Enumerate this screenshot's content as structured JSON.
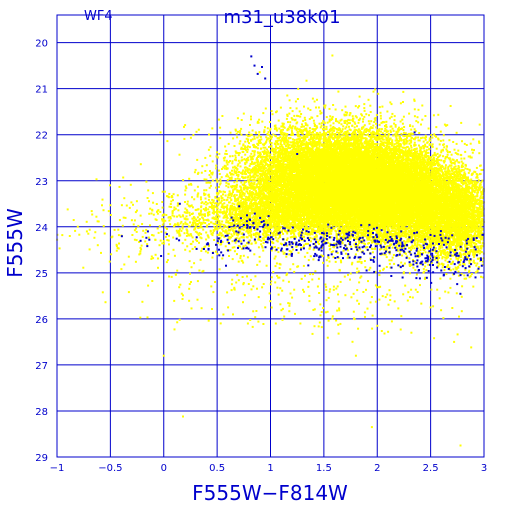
{
  "chart_data": {
    "type": "scatter",
    "title": "m31_u38k01",
    "panel_label": "WF4",
    "xlabel": "F555W−F814W",
    "ylabel": "F555W",
    "xlim": [
      -1,
      3
    ],
    "ylim": [
      29,
      19.4
    ],
    "y_inverted": true,
    "grid": true,
    "x_ticks": [
      -1,
      -0.5,
      0,
      0.5,
      1,
      1.5,
      2,
      2.5,
      3
    ],
    "x_tick_labels": [
      "−1",
      "−0.5",
      "0",
      "0.5",
      "1",
      "1.5",
      "2",
      "2.5",
      "3"
    ],
    "y_ticks": [
      20,
      21,
      22,
      23,
      24,
      25,
      26,
      27,
      28,
      29
    ],
    "y_tick_labels": [
      "20",
      "21",
      "22",
      "23",
      "24",
      "25",
      "26",
      "27",
      "28",
      "29"
    ],
    "colors": {
      "axes": "#0000cc",
      "background": "#ffffff",
      "yellow_points": "#ffff00",
      "blue_points": "#0000cc"
    },
    "series": [
      {
        "color": "#ffff00",
        "description_points": [
          {
            "x": 1.55,
            "y": 22.95,
            "sx": 0.42,
            "sy": 0.55,
            "n": 9000
          },
          {
            "x": 1.85,
            "y": 23.1,
            "sx": 0.38,
            "sy": 0.5,
            "n": 9000
          },
          {
            "x": 2.25,
            "y": 23.45,
            "sx": 0.35,
            "sy": 0.45,
            "n": 6000
          },
          {
            "x": 2.75,
            "y": 23.9,
            "sx": 0.22,
            "sy": 0.45,
            "n": 2600
          },
          {
            "x": 1.05,
            "y": 23.7,
            "sx": 0.3,
            "sy": 0.3,
            "n": 1400
          },
          {
            "x": 0.55,
            "y": 23.85,
            "sx": 0.35,
            "sy": 0.3,
            "n": 500
          },
          {
            "x": 0.0,
            "y": 24.0,
            "sx": 0.6,
            "sy": 0.5,
            "n": 250
          },
          {
            "x": 1.5,
            "y": 25.4,
            "sx": 0.8,
            "sy": 0.5,
            "n": 300
          }
        ],
        "points": [
          [
            1.58,
            20.28
          ],
          [
            0.73,
            21.68
          ],
          [
            0.19,
            21.83
          ],
          [
            -0.03,
            21.95
          ],
          [
            0.65,
            22.08
          ],
          [
            0.2,
            23.3
          ],
          [
            -0.37,
            23.38
          ],
          [
            -0.5,
            23.53
          ],
          [
            -0.62,
            23.88
          ],
          [
            -0.72,
            24.1
          ],
          [
            -0.88,
            24.2
          ],
          [
            -0.95,
            24.18
          ],
          [
            -0.42,
            24.18
          ],
          [
            -0.27,
            24.28
          ],
          [
            -0.22,
            24.58
          ],
          [
            -0.08,
            24.28
          ],
          [
            0.02,
            24.22
          ],
          [
            0.1,
            23.58
          ],
          [
            0.27,
            24.23
          ],
          [
            0.42,
            24.38
          ],
          [
            0.55,
            24.33
          ],
          [
            0.27,
            24.48
          ],
          [
            -0.1,
            24.68
          ],
          [
            -0.37,
            24.82
          ],
          [
            0.75,
            24.63
          ],
          [
            0.32,
            25.18
          ],
          [
            0.05,
            25.08
          ],
          [
            0.95,
            25.75
          ],
          [
            0.75,
            25.22
          ],
          [
            1.48,
            25.85
          ],
          [
            1.05,
            26.1
          ],
          [
            1.28,
            26.1
          ],
          [
            2.0,
            26.15
          ],
          [
            2.32,
            26.3
          ],
          [
            2.22,
            26.23
          ],
          [
            2.72,
            26.5
          ],
          [
            2.88,
            26.62
          ],
          [
            1.8,
            26.8
          ],
          [
            2.5,
            25.75
          ],
          [
            2.9,
            25.3
          ],
          [
            1.65,
            24.95
          ],
          [
            2.02,
            25.05
          ],
          [
            1.15,
            25.05
          ],
          [
            1.25,
            24.87
          ],
          [
            0.0,
            26.8
          ],
          [
            0.18,
            28.12
          ],
          [
            1.95,
            28.35
          ],
          [
            2.78,
            28.75
          ],
          [
            -0.2,
            25.63
          ],
          [
            2.96,
            21.78
          ],
          [
            2.9,
            22.1
          ],
          [
            2.82,
            22.2
          ],
          [
            2.55,
            22.45
          ],
          [
            1.35,
            22.25
          ],
          [
            1.18,
            22.4
          ]
        ]
      },
      {
        "color": "#0000cc",
        "description_points": [
          {
            "x": 1.55,
            "y": 24.35,
            "sx": 0.75,
            "sy": 0.16,
            "n": 320
          },
          {
            "x": 2.6,
            "y": 24.75,
            "sx": 0.28,
            "sy": 0.2,
            "n": 110
          },
          {
            "x": 0.85,
            "y": 23.9,
            "sx": 0.12,
            "sy": 0.12,
            "n": 30
          }
        ],
        "points": [
          [
            0.82,
            20.3
          ],
          [
            0.85,
            20.5
          ],
          [
            0.92,
            20.53
          ],
          [
            0.88,
            20.68
          ],
          [
            0.95,
            20.78
          ],
          [
            1.25,
            22.42
          ],
          [
            2.35,
            21.95
          ],
          [
            0.15,
            23.5
          ],
          [
            0.42,
            24.48
          ],
          [
            0.78,
            23.75
          ],
          [
            0.68,
            24.1
          ],
          [
            0.93,
            24.0
          ],
          [
            0.52,
            24.62
          ],
          [
            2.6,
            24.95
          ],
          [
            2.72,
            25.02
          ],
          [
            2.92,
            25.1
          ],
          [
            2.78,
            25.05
          ],
          [
            2.4,
            25.12
          ],
          [
            1.9,
            24.95
          ]
        ]
      }
    ]
  }
}
